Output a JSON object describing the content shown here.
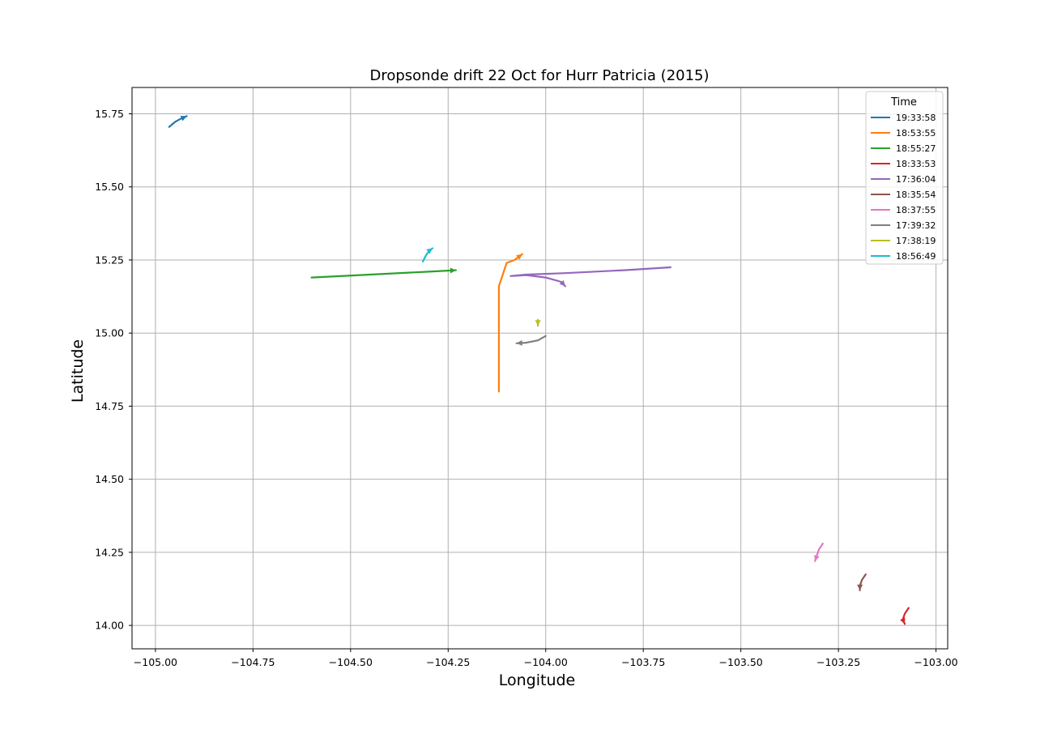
{
  "chart_data": {
    "type": "line",
    "title": "Dropsonde drift 22 Oct for Hurr Patricia (2015)",
    "xlabel": "Longitude",
    "ylabel": "Latitude",
    "xlim": [
      -105.06,
      -102.97
    ],
    "ylim": [
      13.92,
      15.84
    ],
    "xticks": [
      -105.0,
      -104.75,
      -104.5,
      -104.25,
      -104.0,
      -103.75,
      -103.5,
      -103.25,
      -103.0
    ],
    "xtick_labels": [
      "−105.00",
      "−104.75",
      "−104.50",
      "−104.25",
      "−104.00",
      "−103.75",
      "−103.50",
      "−103.25",
      "−103.00"
    ],
    "yticks": [
      14.0,
      14.25,
      14.5,
      14.75,
      15.0,
      15.25,
      15.5,
      15.75
    ],
    "ytick_labels": [
      "14.00",
      "14.25",
      "14.50",
      "14.75",
      "15.00",
      "15.25",
      "15.50",
      "15.75"
    ],
    "grid": true,
    "legend": {
      "title": "Time",
      "placement": "top-right"
    },
    "series": [
      {
        "name": "19:33:58",
        "color": "#1f77b4",
        "x": [
          -104.965,
          -104.95,
          -104.935,
          -104.92
        ],
        "y": [
          15.705,
          15.722,
          15.733,
          15.742
        ]
      },
      {
        "name": "18:53:55",
        "color": "#ff7f0e",
        "x": [
          -104.12,
          -104.12,
          -104.12,
          -104.11,
          -104.1,
          -104.08,
          -104.06
        ],
        "y": [
          14.8,
          15.0,
          15.16,
          15.2,
          15.24,
          15.25,
          15.27
        ]
      },
      {
        "name": "18:55:27",
        "color": "#2ca02c",
        "x": [
          -104.6,
          -104.45,
          -104.3,
          -104.23
        ],
        "y": [
          15.19,
          15.2,
          15.21,
          15.215
        ]
      },
      {
        "name": "18:33:53",
        "color": "#d62728",
        "x": [
          -103.07,
          -103.08,
          -103.085,
          -103.08
        ],
        "y": [
          14.06,
          14.04,
          14.02,
          14.005
        ]
      },
      {
        "name": "17:36:04",
        "color": "#9467bd",
        "x": [
          -103.68,
          -103.8,
          -103.95,
          -104.05,
          -104.09,
          -104.05,
          -104.0,
          -103.96,
          -103.95
        ],
        "y": [
          15.225,
          15.215,
          15.205,
          15.2,
          15.195,
          15.198,
          15.19,
          15.175,
          15.16
        ]
      },
      {
        "name": "18:35:54",
        "color": "#8c564b",
        "x": [
          -103.18,
          -103.19,
          -103.195,
          -103.195
        ],
        "y": [
          14.175,
          14.155,
          14.135,
          14.12
        ]
      },
      {
        "name": "18:37:55",
        "color": "#e377c2",
        "x": [
          -103.29,
          -103.3,
          -103.305,
          -103.31
        ],
        "y": [
          14.28,
          14.26,
          14.24,
          14.22
        ]
      },
      {
        "name": "17:39:32",
        "color": "#7f7f7f",
        "x": [
          -104.0,
          -104.02,
          -104.05,
          -104.075
        ],
        "y": [
          14.99,
          14.975,
          14.967,
          14.965
        ]
      },
      {
        "name": "17:38:19",
        "color": "#bcbd22",
        "x": [
          -104.02,
          -104.02,
          -104.02
        ],
        "y": [
          15.045,
          15.035,
          15.025
        ]
      },
      {
        "name": "18:56:49",
        "color": "#17becf",
        "x": [
          -104.315,
          -104.305,
          -104.295,
          -104.29
        ],
        "y": [
          15.245,
          15.27,
          15.285,
          15.29
        ]
      }
    ]
  }
}
